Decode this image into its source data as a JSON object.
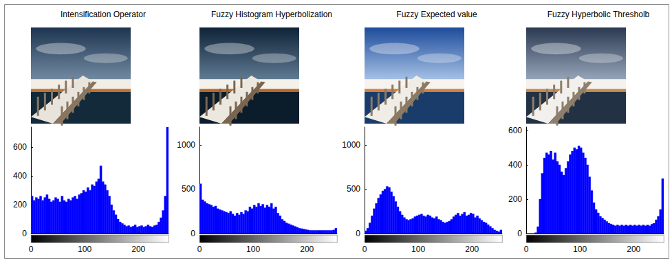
{
  "chart_data": [
    {
      "type": "histogram",
      "title": "Intensification Operator",
      "color": "#0000ff",
      "grid": false,
      "bins": [
        0,
        4,
        8,
        12,
        16,
        20,
        24,
        28,
        32,
        36,
        40,
        44,
        48,
        52,
        56,
        60,
        64,
        68,
        72,
        76,
        80,
        84,
        88,
        92,
        96,
        100,
        104,
        108,
        112,
        116,
        120,
        124,
        128,
        132,
        136,
        140,
        144,
        148,
        152,
        156,
        160,
        164,
        168,
        172,
        176,
        180,
        184,
        188,
        192,
        196,
        200,
        204,
        208,
        212,
        216,
        220,
        224,
        228,
        232,
        236,
        240,
        244,
        248,
        252,
        256
      ],
      "values": [
        260,
        230,
        250,
        240,
        260,
        230,
        250,
        270,
        240,
        220,
        230,
        250,
        240,
        220,
        260,
        230,
        220,
        240,
        230,
        250,
        260,
        240,
        270,
        280,
        300,
        290,
        320,
        300,
        340,
        330,
        360,
        380,
        470,
        360,
        340,
        300,
        260,
        200,
        160,
        130,
        100,
        80,
        70,
        60,
        50,
        55,
        45,
        50,
        60,
        45,
        50,
        55,
        45,
        50,
        60,
        50,
        45,
        55,
        60,
        80,
        110,
        160,
        260,
        740
      ],
      "xlim": [
        0,
        256
      ],
      "xticks": [
        0,
        100,
        200
      ],
      "ylim": [
        0,
        740
      ],
      "yticks": [
        0,
        200,
        400,
        600
      ]
    },
    {
      "type": "histogram",
      "title": "Fuzzy Histogram Hyperbolization",
      "color": "#0000ff",
      "grid": false,
      "bins": [
        0,
        4,
        8,
        12,
        16,
        20,
        24,
        28,
        32,
        36,
        40,
        44,
        48,
        52,
        56,
        60,
        64,
        68,
        72,
        76,
        80,
        84,
        88,
        92,
        96,
        100,
        104,
        108,
        112,
        116,
        120,
        124,
        128,
        132,
        136,
        140,
        144,
        148,
        152,
        156,
        160,
        164,
        168,
        172,
        176,
        180,
        184,
        188,
        192,
        196,
        200,
        204,
        208,
        212,
        216,
        220,
        224,
        228,
        232,
        236,
        240,
        244,
        248,
        252,
        256
      ],
      "values": [
        560,
        380,
        360,
        340,
        330,
        320,
        300,
        310,
        280,
        270,
        260,
        250,
        240,
        230,
        250,
        220,
        200,
        230,
        210,
        240,
        220,
        260,
        250,
        300,
        280,
        320,
        300,
        340,
        310,
        330,
        290,
        320,
        300,
        340,
        280,
        300,
        230,
        200,
        160,
        140,
        120,
        110,
        100,
        90,
        80,
        70,
        60,
        55,
        50,
        45,
        40,
        35,
        35,
        35,
        35,
        35,
        35,
        35,
        35,
        35,
        35,
        35,
        40,
        60
      ],
      "xlim": [
        0,
        256
      ],
      "xticks": [
        0,
        100,
        200
      ],
      "ylim": [
        0,
        1200
      ],
      "yticks": [
        0,
        500,
        1000
      ]
    },
    {
      "type": "histogram",
      "title": "Fuzzy Expected value",
      "color": "#0000ff",
      "grid": false,
      "bins": [
        0,
        4,
        8,
        12,
        16,
        20,
        24,
        28,
        32,
        36,
        40,
        44,
        48,
        52,
        56,
        60,
        64,
        68,
        72,
        76,
        80,
        84,
        88,
        92,
        96,
        100,
        104,
        108,
        112,
        116,
        120,
        124,
        128,
        132,
        136,
        140,
        144,
        148,
        152,
        156,
        160,
        164,
        168,
        172,
        176,
        180,
        184,
        188,
        192,
        196,
        200,
        204,
        208,
        212,
        216,
        220,
        224,
        228,
        232,
        236,
        240,
        244,
        248,
        252,
        256
      ],
      "values": [
        30,
        60,
        120,
        200,
        280,
        340,
        400,
        440,
        480,
        500,
        530,
        520,
        470,
        420,
        360,
        300,
        250,
        210,
        180,
        160,
        150,
        160,
        170,
        190,
        200,
        210,
        220,
        200,
        190,
        210,
        200,
        180,
        170,
        190,
        160,
        150,
        130,
        120,
        130,
        140,
        160,
        190,
        210,
        230,
        200,
        220,
        240,
        200,
        210,
        230,
        220,
        180,
        200,
        170,
        150,
        130,
        120,
        100,
        80,
        60,
        40,
        30,
        20,
        40
      ],
      "xlim": [
        0,
        256
      ],
      "xticks": [
        0,
        100,
        200
      ],
      "ylim": [
        0,
        1200
      ],
      "yticks": [
        0,
        500,
        1000
      ]
    },
    {
      "type": "histogram",
      "title": "Fuzzy Hyperbolic Thresholb",
      "color": "#0000ff",
      "grid": false,
      "bins": [
        0,
        4,
        8,
        12,
        16,
        20,
        24,
        28,
        32,
        36,
        40,
        44,
        48,
        52,
        56,
        60,
        64,
        68,
        72,
        76,
        80,
        84,
        88,
        92,
        96,
        100,
        104,
        108,
        112,
        116,
        120,
        124,
        128,
        132,
        136,
        140,
        144,
        148,
        152,
        156,
        160,
        164,
        168,
        172,
        176,
        180,
        184,
        188,
        192,
        196,
        200,
        204,
        208,
        212,
        216,
        220,
        224,
        228,
        232,
        236,
        240,
        244,
        248,
        252,
        256
      ],
      "values": [
        0,
        0,
        0,
        0,
        5,
        40,
        200,
        350,
        440,
        470,
        460,
        480,
        430,
        470,
        420,
        400,
        360,
        340,
        380,
        420,
        460,
        480,
        500,
        490,
        510,
        500,
        470,
        440,
        400,
        330,
        250,
        180,
        140,
        120,
        100,
        90,
        80,
        70,
        60,
        55,
        50,
        45,
        50,
        45,
        50,
        45,
        50,
        45,
        50,
        45,
        50,
        45,
        50,
        45,
        50,
        45,
        50,
        45,
        55,
        60,
        80,
        100,
        140,
        320
      ],
      "xlim": [
        0,
        256
      ],
      "xticks": [
        0,
        100,
        200
      ],
      "ylim": [
        0,
        620
      ],
      "yticks": [
        0,
        200,
        400,
        600
      ]
    }
  ]
}
